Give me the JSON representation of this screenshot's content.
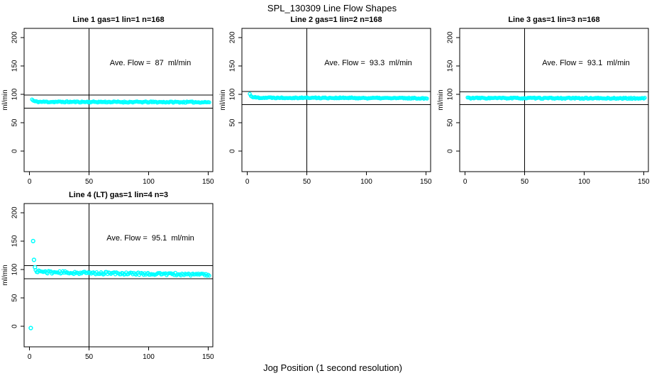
{
  "chart_data": {
    "type": "scatter",
    "title": "SPL_130309  Line Flow Shapes",
    "xlabel": "Jog Position (1 second resolution)",
    "ylabel": "ml/min",
    "x_ticks": [
      0,
      50,
      100,
      150
    ],
    "y_ticks": [
      0,
      50,
      100,
      150,
      200
    ],
    "xlim": [
      -4.6,
      154
    ],
    "ylim": [
      -36,
      216
    ],
    "grid": false,
    "legend": "none",
    "point_color": "#00FFFF",
    "line_color": "#000000",
    "vline_x": 50,
    "panels": [
      {
        "id": "line-1",
        "title": "Line 1 gas=1 lin=1 n=168",
        "annotation": "Ave. Flow =  87  ml/min",
        "ave_flow_ml_min": 87,
        "n": 168,
        "ref_lines": [
          98.5,
          75.5
        ],
        "profile": [
          [
            2,
            91
          ],
          [
            3,
            88.8
          ],
          [
            4.5,
            87.4
          ],
          [
            8,
            86.8
          ],
          [
            151,
            86.2
          ]
        ],
        "noise": 1.1,
        "band_points": 168,
        "outliers": [],
        "seed": 11
      },
      {
        "id": "line-2",
        "title": "Line 2 gas=1 lin=2 n=168",
        "annotation": "Ave. Flow =  93.3  ml/min",
        "ave_flow_ml_min": 93.3,
        "n": 168,
        "ref_lines": [
          104.8,
          81.8
        ],
        "profile": [
          [
            2,
            100.5
          ],
          [
            3,
            97.3
          ],
          [
            4.5,
            95.3
          ],
          [
            8,
            94.2
          ],
          [
            151,
            93.1
          ]
        ],
        "noise": 1.0,
        "band_points": 168,
        "outliers": [],
        "seed": 22
      },
      {
        "id": "line-3",
        "title": "Line 3 gas=1 lin=3 n=168",
        "annotation": "Ave. Flow =  93.1  ml/min",
        "ave_flow_ml_min": 93.1,
        "n": 168,
        "ref_lines": [
          104.6,
          81.6
        ],
        "profile": [
          [
            2,
            94.3
          ],
          [
            4,
            93.4
          ],
          [
            151,
            92.9
          ]
        ],
        "noise": 1.0,
        "band_points": 168,
        "outliers": [],
        "seed": 33
      },
      {
        "id": "line-4",
        "title": "Line 4 (LT) gas=1 lin=4 n=3",
        "annotation": "Ave. Flow =  95.1  ml/min",
        "ave_flow_ml_min": 95.1,
        "n": 3,
        "ref_lines": [
          106.6,
          83.6
        ],
        "profile": [
          [
            5,
            97.5
          ],
          [
            15,
            95.3
          ],
          [
            45,
            94
          ],
          [
            90,
            92.8
          ],
          [
            151,
            91
          ]
        ],
        "noise": 2.4,
        "band_points": 160,
        "outliers": [
          [
            1,
            -3
          ],
          [
            3,
            150
          ],
          [
            3.7,
            117
          ],
          [
            4.5,
            104
          ]
        ],
        "seed": 44
      }
    ]
  }
}
